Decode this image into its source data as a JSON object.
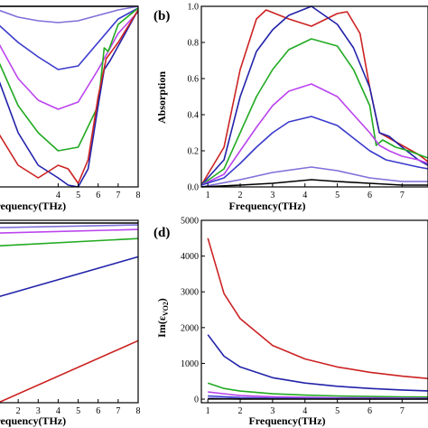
{
  "chart_data": [
    {
      "type": "line",
      "xlabel": "Frequency(THz)",
      "ylabel": "",
      "xlim": [
        1,
        8
      ],
      "ylim": [
        0,
        1
      ],
      "xticks": [
        "4",
        "5",
        "6",
        "7",
        "8"
      ],
      "series": [
        {
          "color": "#000000",
          "x": [
            1,
            4,
            8
          ],
          "y": [
            1.0,
            1.0,
            1.0
          ]
        },
        {
          "color": "#7f6fd9",
          "x": [
            1,
            2,
            3,
            4,
            5,
            6,
            7,
            8
          ],
          "y": [
            0.98,
            0.94,
            0.92,
            0.91,
            0.92,
            0.95,
            0.98,
            1.0
          ]
        },
        {
          "color": "#3a3acc",
          "x": [
            1,
            2,
            3,
            4,
            5,
            6,
            7,
            8
          ],
          "y": [
            0.9,
            0.8,
            0.72,
            0.65,
            0.67,
            0.8,
            0.93,
            0.99
          ]
        },
        {
          "color": "#bb44ee",
          "x": [
            1,
            2,
            3,
            4,
            5,
            6,
            7,
            8
          ],
          "y": [
            0.8,
            0.6,
            0.48,
            0.43,
            0.47,
            0.65,
            0.85,
            0.97
          ]
        },
        {
          "color": "#22aa22",
          "x": [
            1,
            2,
            3,
            4,
            5,
            6,
            6.3,
            6.5,
            7,
            8
          ],
          "y": [
            0.7,
            0.45,
            0.3,
            0.2,
            0.22,
            0.45,
            0.77,
            0.75,
            0.9,
            0.99
          ]
        },
        {
          "color": "#2222aa",
          "x": [
            1,
            2,
            3,
            4,
            4.5,
            5,
            5.5,
            6,
            6.3,
            6.6,
            7,
            8
          ],
          "y": [
            0.6,
            0.3,
            0.12,
            0.05,
            0.01,
            0.0,
            0.1,
            0.45,
            0.65,
            0.7,
            0.78,
            0.98
          ]
        },
        {
          "color": "#cc2222",
          "x": [
            1,
            2,
            3,
            4,
            4.5,
            5,
            5.5,
            6,
            6.4,
            7,
            8
          ],
          "y": [
            0.3,
            0.12,
            0.05,
            0.12,
            0.1,
            0.02,
            0.15,
            0.5,
            0.71,
            0.8,
            0.98
          ]
        }
      ]
    },
    {
      "type": "line",
      "label": "(b)",
      "xlabel": "Frequency(THz)",
      "ylabel": "Absorption",
      "xlim": [
        0.8,
        7.8
      ],
      "ylim": [
        0,
        1
      ],
      "xticks": [
        "1",
        "2",
        "3",
        "4",
        "5",
        "6",
        "7"
      ],
      "yticks": [
        "0.0",
        "0.2",
        "0.4",
        "0.6",
        "0.8",
        "1.0"
      ],
      "series": [
        {
          "color": "#cc2222",
          "x": [
            0.8,
            1.5,
            2,
            2.5,
            2.8,
            3.5,
            4.2,
            5.0,
            5.3,
            5.7,
            6.0,
            6.3,
            6.6,
            7.0,
            7.5,
            7.8
          ],
          "y": [
            0.01,
            0.22,
            0.65,
            0.93,
            0.98,
            0.93,
            0.89,
            0.96,
            0.97,
            0.85,
            0.55,
            0.3,
            0.27,
            0.23,
            0.18,
            0.14
          ]
        },
        {
          "color": "#2222aa",
          "x": [
            0.8,
            1.5,
            2,
            2.5,
            3,
            3.5,
            4.2,
            5.0,
            5.5,
            6.0,
            6.3,
            6.6,
            7.0,
            7.5,
            7.8
          ],
          "y": [
            0.01,
            0.15,
            0.5,
            0.75,
            0.87,
            0.95,
            1.0,
            0.9,
            0.77,
            0.55,
            0.3,
            0.28,
            0.22,
            0.15,
            0.12
          ]
        },
        {
          "color": "#22aa22",
          "x": [
            0.8,
            1.5,
            2,
            2.5,
            3,
            3.5,
            4.2,
            5.0,
            5.5,
            6.0,
            6.2,
            6.4,
            6.8,
            7.2,
            7.8
          ],
          "y": [
            0.01,
            0.1,
            0.3,
            0.5,
            0.65,
            0.76,
            0.82,
            0.78,
            0.65,
            0.45,
            0.23,
            0.26,
            0.22,
            0.2,
            0.16
          ]
        },
        {
          "color": "#bb44ee",
          "x": [
            0.8,
            1.5,
            2,
            2.5,
            3,
            3.5,
            4.2,
            5.0,
            5.5,
            6.0,
            6.3,
            6.6,
            7.0,
            7.5,
            7.8
          ],
          "y": [
            0.01,
            0.07,
            0.2,
            0.33,
            0.45,
            0.53,
            0.57,
            0.5,
            0.4,
            0.3,
            0.23,
            0.2,
            0.17,
            0.15,
            0.13
          ]
        },
        {
          "color": "#3a3acc",
          "x": [
            0.8,
            1.5,
            2,
            2.5,
            3,
            3.5,
            4.2,
            5.0,
            5.5,
            6.0,
            6.5,
            7.0,
            7.5,
            7.8
          ],
          "y": [
            0.01,
            0.05,
            0.13,
            0.22,
            0.3,
            0.36,
            0.39,
            0.34,
            0.27,
            0.2,
            0.15,
            0.13,
            0.11,
            0.1
          ]
        },
        {
          "color": "#7f6fd9",
          "x": [
            0.8,
            2,
            3,
            4.2,
            5,
            6,
            7,
            7.8
          ],
          "y": [
            0.0,
            0.04,
            0.08,
            0.11,
            0.09,
            0.05,
            0.03,
            0.03
          ]
        },
        {
          "color": "#000000",
          "x": [
            0.8,
            2,
            3,
            4.2,
            5,
            6,
            7,
            7.8
          ],
          "y": [
            0.0,
            0.01,
            0.02,
            0.04,
            0.03,
            0.02,
            0.01,
            0.01
          ]
        }
      ]
    },
    {
      "type": "line",
      "xlabel": "Frequency(THz)",
      "ylabel": "",
      "xlim": [
        1,
        8
      ],
      "ylim": [
        0,
        1
      ],
      "xticks": [
        "2",
        "3",
        "4",
        "5",
        "6",
        "7",
        "8"
      ],
      "series": [
        {
          "color": "#000000",
          "x": [
            1,
            8
          ],
          "y": [
            0.985,
            0.985
          ]
        },
        {
          "color": "#7f6fd9",
          "x": [
            1,
            8
          ],
          "y": [
            0.96,
            0.975
          ]
        },
        {
          "color": "#bb44ee",
          "x": [
            1,
            8
          ],
          "y": [
            0.93,
            0.95
          ]
        },
        {
          "color": "#22aa22",
          "x": [
            1,
            8
          ],
          "y": [
            0.86,
            0.9
          ]
        },
        {
          "color": "#2222aa",
          "x": [
            1,
            8
          ],
          "y": [
            0.58,
            0.8
          ]
        },
        {
          "color": "#cc2222",
          "x": [
            1,
            8
          ],
          "y": [
            0.0,
            0.34
          ]
        }
      ]
    },
    {
      "type": "line",
      "label": "(d)",
      "xlabel": "Frequency(THz)",
      "ylabel": "Im(ε",
      "ylabel_sub": "VO2",
      "ylabel_close": ")",
      "xlim": [
        0.8,
        7.8
      ],
      "ylim": [
        -100,
        5000
      ],
      "xticks": [
        "1",
        "2",
        "3",
        "4",
        "5",
        "6",
        "7"
      ],
      "yticks": [
        "0",
        "1000",
        "2000",
        "3000",
        "4000",
        "5000"
      ],
      "series": [
        {
          "color": "#cc2222",
          "x": [
            1,
            1.5,
            2,
            3,
            4,
            5,
            6,
            7,
            7.8
          ],
          "y": [
            4500,
            2950,
            2250,
            1500,
            1125,
            900,
            750,
            643,
            577
          ]
        },
        {
          "color": "#2222aa",
          "x": [
            1,
            1.5,
            2,
            3,
            4,
            5,
            6,
            7,
            7.8
          ],
          "y": [
            1800,
            1200,
            900,
            600,
            450,
            360,
            300,
            257,
            231
          ]
        },
        {
          "color": "#22aa22",
          "x": [
            1,
            1.5,
            2,
            3,
            4,
            5,
            6,
            7,
            7.8
          ],
          "y": [
            450,
            300,
            225,
            150,
            113,
            90,
            75,
            64,
            58
          ]
        },
        {
          "color": "#bb44ee",
          "x": [
            1,
            2,
            3,
            4,
            5,
            6,
            7,
            7.8
          ],
          "y": [
            200,
            100,
            67,
            50,
            40,
            33,
            29,
            26
          ]
        },
        {
          "color": "#3a3acc",
          "x": [
            1,
            2,
            3,
            4,
            5,
            6,
            7,
            7.8
          ],
          "y": [
            90,
            45,
            30,
            22,
            18,
            15,
            13,
            12
          ]
        },
        {
          "color": "#7f6fd9",
          "x": [
            1,
            2,
            4,
            7.8
          ],
          "y": [
            30,
            15,
            8,
            4
          ]
        },
        {
          "color": "#000000",
          "x": [
            1,
            2,
            4,
            7.8
          ],
          "y": [
            5,
            3,
            2,
            1
          ]
        }
      ]
    }
  ]
}
